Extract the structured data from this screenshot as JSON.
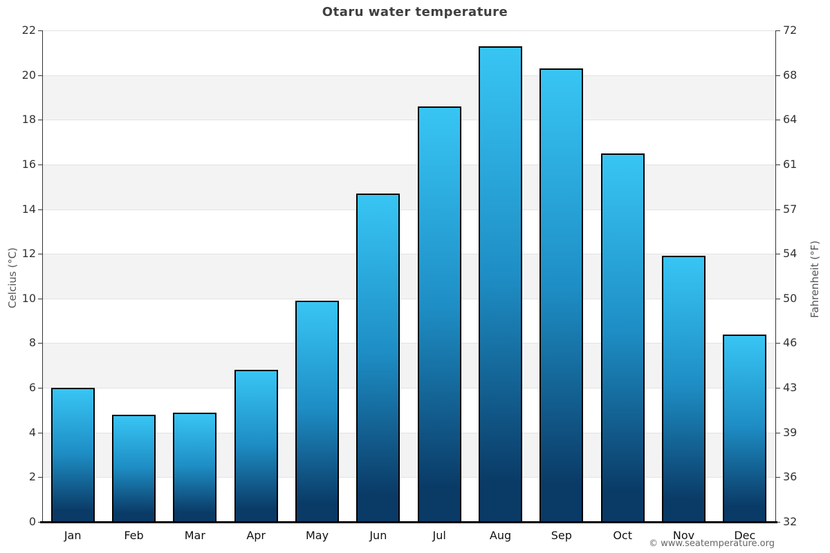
{
  "title": "Otaru water temperature",
  "copyright": "© www.seatemperature.org",
  "chart_data": {
    "type": "bar",
    "title": "Otaru water temperature",
    "categories": [
      "Jan",
      "Feb",
      "Mar",
      "Apr",
      "May",
      "Jun",
      "Jul",
      "Aug",
      "Sep",
      "Oct",
      "Nov",
      "Dec"
    ],
    "values": [
      6.0,
      4.8,
      4.9,
      6.8,
      9.9,
      14.7,
      18.6,
      21.3,
      20.3,
      16.5,
      11.9,
      8.4
    ],
    "ylabel_left": "Celcius (°C)",
    "ylabel_right": "Fahrenheit (°F)",
    "y_left_ticks": [
      0,
      2,
      4,
      6,
      8,
      10,
      12,
      14,
      16,
      18,
      20,
      22
    ],
    "y_right_ticks": [
      32,
      36,
      39,
      43,
      46,
      50,
      54,
      57,
      61,
      64,
      68,
      72
    ],
    "ylim": [
      0,
      22
    ],
    "grid_on": true,
    "legend": "none",
    "colors": {
      "bar_top": "#38c5f4",
      "bar_mid": "#1e8ec5",
      "bar_bottom": "#0a3a66",
      "bar_border": "#000000",
      "band_gray": "#f3f3f3",
      "gridline": "#e2e2e2",
      "axis_line": "#333333",
      "baseline": "#000000",
      "title_text": "#3f3f3f",
      "tick_text": "#333333",
      "axis_title_text": "#555555",
      "copyright_text": "#666666"
    }
  }
}
